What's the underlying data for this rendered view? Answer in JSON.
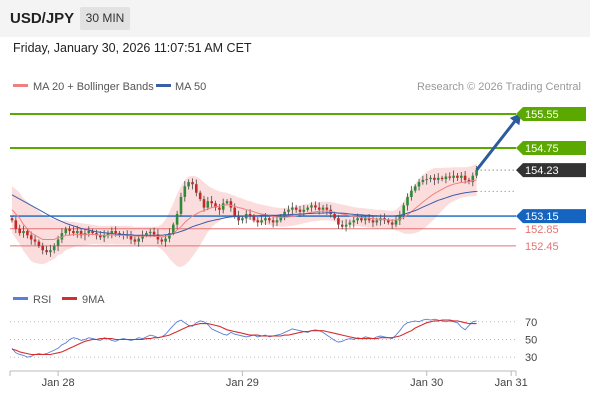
{
  "header": {
    "symbol": "USD/JPY",
    "interval": "30 MIN",
    "timestamp": "Friday, January 30, 2026 11:07:51 AM CET"
  },
  "legend": {
    "ma20": "MA 20 + Bollinger Bands",
    "ma50": "MA 50",
    "credit": "Research © 2026 Trading Central",
    "rsi": "RSI",
    "rsi_ma": "9MA"
  },
  "colors": {
    "up": "#2e8b3a",
    "down": "#c62828",
    "bollinger": "#fbd5d5",
    "ma20": "#f08080",
    "ma50": "#3a5fa8",
    "resistance": "#5aa800",
    "pivot": "#1565c0",
    "support": "#e57373",
    "arrow": "#2b5a9e",
    "rsi": "#5b7fd6",
    "rsi_ma": "#d32f2f"
  },
  "chart_data": [
    {
      "type": "candlestick",
      "ylim": [
        151.6,
        155.95
      ],
      "xlabels": [
        {
          "label": "Jan 28",
          "index": 12
        },
        {
          "label": "Jan 29",
          "index": 60
        },
        {
          "label": "Jan 30",
          "index": 108
        },
        {
          "label": "Jan 31",
          "index": 130
        }
      ],
      "levels": [
        {
          "name": "resistance-2",
          "value": 155.55,
          "label": "155.55",
          "kind": "resistance"
        },
        {
          "name": "resistance-1",
          "value": 154.75,
          "label": "154.75",
          "kind": "resistance"
        },
        {
          "name": "last-price",
          "value": 154.23,
          "label": "154.23",
          "kind": "last"
        },
        {
          "name": "pivot",
          "value": 153.15,
          "label": "153.15",
          "kind": "pivot"
        },
        {
          "name": "support-1",
          "value": 152.85,
          "label": "152.85",
          "kind": "support"
        },
        {
          "name": "support-2",
          "value": 152.45,
          "label": "152.45",
          "kind": "support"
        }
      ],
      "closes": [
        153.05,
        152.85,
        152.75,
        152.8,
        152.7,
        152.6,
        152.55,
        152.45,
        152.35,
        152.3,
        152.35,
        152.45,
        152.6,
        152.75,
        152.85,
        152.8,
        152.75,
        152.8,
        152.7,
        152.75,
        152.8,
        152.75,
        152.7,
        152.65,
        152.7,
        152.75,
        152.8,
        152.75,
        152.7,
        152.72,
        152.68,
        152.6,
        152.55,
        152.62,
        152.7,
        152.75,
        152.78,
        152.72,
        152.6,
        152.55,
        152.62,
        152.75,
        152.95,
        153.2,
        153.6,
        153.85,
        153.95,
        153.9,
        153.7,
        153.55,
        153.35,
        153.5,
        153.45,
        153.35,
        153.3,
        153.45,
        153.5,
        153.35,
        153.15,
        153.05,
        153.1,
        153.2,
        153.15,
        153.05,
        153.0,
        153.05,
        153.1,
        153.05,
        153.0,
        153.05,
        153.15,
        153.25,
        153.3,
        153.35,
        153.3,
        153.25,
        153.3,
        153.35,
        153.4,
        153.35,
        153.3,
        153.35,
        153.3,
        153.2,
        153.1,
        152.95,
        152.9,
        152.95,
        153.0,
        153.05,
        153.1,
        153.05,
        153.1,
        153.05,
        153.0,
        153.05,
        153.1,
        153.05,
        153.0,
        152.95,
        153.05,
        153.15,
        153.4,
        153.6,
        153.75,
        153.85,
        153.95,
        154.0,
        154.02,
        154.05,
        154.0,
        154.05,
        154.02,
        154.08,
        154.05,
        154.1,
        154.05,
        154.1,
        154.0,
        153.95,
        154.1,
        154.23
      ],
      "ma20": [
        153.3,
        153.2,
        153.1,
        152.95,
        152.85,
        152.75,
        152.7,
        152.65,
        152.6,
        152.6,
        152.6,
        152.6,
        152.65,
        152.65,
        152.7,
        152.7,
        152.72,
        152.72,
        152.72,
        152.72,
        152.72,
        152.72,
        152.71,
        152.7,
        152.7,
        152.7,
        152.71,
        152.7,
        152.7,
        152.7,
        152.7,
        152.69,
        152.68,
        152.68,
        152.68,
        152.68,
        152.68,
        152.68,
        152.67,
        152.66,
        152.67,
        152.7,
        152.75,
        152.82,
        152.9,
        153.0,
        153.08,
        153.15,
        153.2,
        153.25,
        153.28,
        153.32,
        153.35,
        153.37,
        153.38,
        153.4,
        153.42,
        153.4,
        153.38,
        153.35,
        153.33,
        153.3,
        153.28,
        153.25,
        153.22,
        153.2,
        153.18,
        153.16,
        153.14,
        153.13,
        153.12,
        153.12,
        153.13,
        153.14,
        153.16,
        153.18,
        153.2,
        153.22,
        153.24,
        153.25,
        153.26,
        153.27,
        153.27,
        153.26,
        153.24,
        153.22,
        153.2,
        153.18,
        153.16,
        153.14,
        153.13,
        153.12,
        153.11,
        153.1,
        153.09,
        153.08,
        153.08,
        153.07,
        153.06,
        153.05,
        153.06,
        153.08,
        153.12,
        153.18,
        153.25,
        153.33,
        153.4,
        153.48,
        153.55,
        153.62,
        153.68,
        153.73,
        153.78,
        153.83,
        153.87,
        153.9,
        153.92,
        153.94,
        153.95,
        153.96,
        153.98,
        154.0
      ],
      "ma50": [
        153.65,
        153.6,
        153.55,
        153.5,
        153.45,
        153.4,
        153.35,
        153.3,
        153.25,
        153.2,
        153.15,
        153.1,
        153.06,
        153.02,
        152.98,
        152.95,
        152.92,
        152.89,
        152.86,
        152.84,
        152.82,
        152.8,
        152.78,
        152.77,
        152.76,
        152.75,
        152.74,
        152.73,
        152.72,
        152.72,
        152.71,
        152.71,
        152.7,
        152.7,
        152.7,
        152.7,
        152.7,
        152.7,
        152.7,
        152.7,
        152.71,
        152.72,
        152.74,
        152.76,
        152.79,
        152.82,
        152.86,
        152.9,
        152.93,
        152.96,
        152.99,
        153.02,
        153.04,
        153.06,
        153.08,
        153.1,
        153.12,
        153.13,
        153.14,
        153.14,
        153.15,
        153.15,
        153.16,
        153.16,
        153.16,
        153.17,
        153.17,
        153.17,
        153.17,
        153.17,
        153.18,
        153.18,
        153.18,
        153.19,
        153.19,
        153.2,
        153.2,
        153.21,
        153.21,
        153.22,
        153.22,
        153.22,
        153.23,
        153.23,
        153.23,
        153.22,
        153.22,
        153.21,
        153.2,
        153.19,
        153.18,
        153.18,
        153.17,
        153.17,
        153.16,
        153.16,
        153.15,
        153.15,
        153.15,
        153.15,
        153.16,
        153.17,
        153.19,
        153.22,
        153.25,
        153.28,
        153.32,
        153.36,
        153.4,
        153.44,
        153.48,
        153.52,
        153.55,
        153.58,
        153.61,
        153.64,
        153.66,
        153.68,
        153.7,
        153.71,
        153.72,
        153.73
      ],
      "band_width": [
        0.55,
        0.58,
        0.6,
        0.62,
        0.64,
        0.66,
        0.65,
        0.62,
        0.58,
        0.55,
        0.5,
        0.46,
        0.42,
        0.38,
        0.35,
        0.32,
        0.3,
        0.28,
        0.26,
        0.25,
        0.24,
        0.23,
        0.22,
        0.22,
        0.22,
        0.22,
        0.22,
        0.22,
        0.22,
        0.22,
        0.22,
        0.22,
        0.22,
        0.22,
        0.22,
        0.22,
        0.22,
        0.22,
        0.24,
        0.3,
        0.4,
        0.55,
        0.7,
        0.85,
        0.95,
        1.0,
        1.0,
        0.95,
        0.88,
        0.78,
        0.66,
        0.55,
        0.46,
        0.4,
        0.35,
        0.31,
        0.28,
        0.26,
        0.25,
        0.24,
        0.23,
        0.22,
        0.22,
        0.22,
        0.22,
        0.22,
        0.22,
        0.22,
        0.22,
        0.22,
        0.22,
        0.22,
        0.22,
        0.22,
        0.22,
        0.22,
        0.22,
        0.22,
        0.22,
        0.22,
        0.22,
        0.22,
        0.22,
        0.22,
        0.22,
        0.22,
        0.22,
        0.22,
        0.22,
        0.22,
        0.22,
        0.22,
        0.22,
        0.22,
        0.22,
        0.22,
        0.22,
        0.22,
        0.22,
        0.22,
        0.24,
        0.3,
        0.38,
        0.45,
        0.52,
        0.58,
        0.62,
        0.64,
        0.64,
        0.62,
        0.6,
        0.55,
        0.5,
        0.46,
        0.42,
        0.4,
        0.38,
        0.36,
        0.35,
        0.35,
        0.36,
        0.38
      ],
      "arrow": {
        "from_index": 121,
        "from_value": 154.23,
        "to_index": 132,
        "to_value": 155.5
      }
    },
    {
      "type": "line",
      "title": "RSI",
      "ylim": [
        20,
        80
      ],
      "ticks": [
        30,
        50,
        70
      ],
      "series": [
        {
          "name": "RSI",
          "values": [
            40,
            35,
            33,
            32,
            30,
            31,
            33,
            34,
            33,
            34,
            36,
            38,
            40,
            44,
            46,
            50,
            52,
            51,
            49,
            50,
            52,
            51,
            50,
            49,
            52,
            51,
            49,
            48,
            50,
            51,
            50,
            49,
            50,
            52,
            51,
            53,
            55,
            54,
            52,
            53,
            56,
            61,
            66,
            70,
            72,
            69,
            66,
            65,
            69,
            71,
            70,
            67,
            62,
            60,
            58,
            56,
            55,
            58,
            56,
            55,
            54,
            53,
            54,
            55,
            53,
            54,
            55,
            53,
            54,
            55,
            56,
            58,
            60,
            62,
            61,
            60,
            59,
            58,
            60,
            61,
            60,
            58,
            55,
            52,
            49,
            47,
            48,
            50,
            51,
            50,
            52,
            51,
            53,
            52,
            51,
            53,
            54,
            53,
            52,
            51,
            55,
            60,
            66,
            69,
            70,
            71,
            70,
            72,
            73,
            72,
            73,
            72,
            71,
            70,
            71,
            70,
            69,
            64,
            61,
            66,
            70,
            71
          ]
        },
        {
          "name": "9MA",
          "values": [
            39,
            38,
            36,
            35,
            34,
            33,
            33,
            33,
            33,
            33,
            33,
            34,
            35,
            36,
            38,
            40,
            42,
            44,
            46,
            48,
            49,
            50,
            50,
            51,
            51,
            51,
            51,
            50,
            50,
            50,
            50,
            50,
            50,
            50,
            50,
            51,
            51,
            52,
            52,
            53,
            54,
            55,
            57,
            59,
            61,
            63,
            65,
            66,
            67,
            68,
            68,
            68,
            67,
            66,
            65,
            63,
            61,
            60,
            59,
            58,
            57,
            56,
            55,
            55,
            55,
            54,
            54,
            54,
            54,
            54,
            54,
            55,
            55,
            56,
            57,
            58,
            59,
            59,
            60,
            60,
            60,
            60,
            59,
            58,
            57,
            56,
            55,
            54,
            53,
            52,
            51,
            51,
            51,
            51,
            51,
            51,
            52,
            52,
            52,
            52,
            53,
            54,
            56,
            58,
            60,
            63,
            65,
            67,
            69,
            70,
            71,
            71,
            72,
            72,
            72,
            71,
            71,
            70,
            69,
            68,
            68,
            68
          ]
        }
      ]
    }
  ]
}
